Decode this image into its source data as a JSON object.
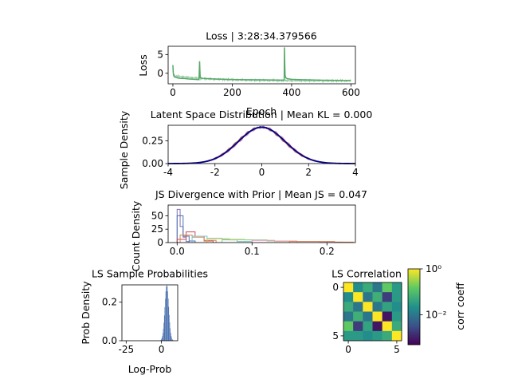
{
  "chart_data": [
    {
      "id": "loss",
      "type": "line",
      "title": "Loss | 3:28:34.379566",
      "xlabel": "Epoch",
      "ylabel": "Loss",
      "xlim": [
        -16,
        615
      ],
      "ylim": [
        -2.8,
        7.2
      ],
      "xticks": [
        0,
        200,
        400,
        600
      ],
      "yticks": [
        0,
        5
      ],
      "series": [
        {
          "color": "#55a868",
          "x": [
            0,
            1,
            2,
            4,
            6,
            10,
            15,
            20,
            30,
            40,
            50,
            60,
            70,
            80,
            88,
            90,
            91,
            92,
            94,
            96,
            100,
            120,
            150,
            180,
            200,
            250,
            300,
            340,
            360,
            370,
            375,
            376,
            377,
            378,
            380,
            385,
            390,
            400,
            450,
            500,
            550,
            600
          ],
          "y": [
            2.2,
            0.5,
            -0.4,
            -0.8,
            -1.0,
            -1.1,
            -1.2,
            -1.3,
            -1.35,
            -1.4,
            -1.5,
            -1.55,
            -1.6,
            -1.65,
            -1.7,
            3.2,
            1.0,
            -1.0,
            -1.2,
            -1.3,
            -1.35,
            -1.45,
            -1.55,
            -1.6,
            -1.65,
            -1.7,
            -1.75,
            -1.8,
            -1.82,
            -1.85,
            -1.85,
            6.9,
            2.5,
            -0.5,
            -1.2,
            -1.4,
            -1.5,
            -1.6,
            -1.75,
            -1.85,
            -1.9,
            -1.95
          ]
        }
      ]
    },
    {
      "id": "latent",
      "type": "line",
      "title": "Latent Space Distribution | Mean KL = 0.000",
      "ylabel": "Sample Density",
      "xlim": [
        -4,
        4
      ],
      "ylim": [
        0,
        0.42
      ],
      "xticks": [
        -4,
        -2,
        0,
        2,
        4
      ],
      "yticks": [
        0.0,
        0.25
      ],
      "ytick_labels": [
        "0.00",
        "0.25"
      ],
      "normal_mean": 0,
      "normal_std": 1,
      "series": [
        {
          "color": "#dd8452",
          "shift": 0.05,
          "jitter": 0.01
        },
        {
          "color": "#c44e52",
          "shift": -0.06,
          "jitter": 0.008
        },
        {
          "color": "#8172b3",
          "shift": 0.02,
          "jitter": 0.012
        },
        {
          "color": "#937860",
          "shift": -0.03,
          "jitter": 0.009
        },
        {
          "color": "#da8bc3",
          "shift": 0.04,
          "jitter": 0.01
        },
        {
          "color": "#4c72b0",
          "shift": 0.0,
          "jitter": 0.006
        },
        {
          "color": "#00008b",
          "shift": 0.0,
          "jitter": 0.0,
          "width": 1.8
        }
      ]
    },
    {
      "id": "js",
      "type": "histogram",
      "title": "JS Divergence with Prior | Mean JS = 0.047",
      "ylabel": "Count Density",
      "xlim": [
        -0.012,
        0.238
      ],
      "ylim": [
        0,
        70
      ],
      "xticks": [
        0.0,
        0.1,
        0.2
      ],
      "xtick_labels": [
        "0.0",
        "0.1",
        "0.2"
      ],
      "yticks": [
        0,
        25,
        50
      ],
      "series": [
        {
          "color": "#8172b3",
          "edges": [
            0.0,
            0.004,
            0.008,
            0.012,
            0.016
          ],
          "counts": [
            62,
            30,
            10,
            2
          ]
        },
        {
          "color": "#4c72b0",
          "edges": [
            0.0,
            0.008,
            0.016,
            0.024
          ],
          "counts": [
            50,
            12,
            3
          ]
        },
        {
          "color": "#c44e52",
          "edges": [
            0.0,
            0.012,
            0.024,
            0.036,
            0.048
          ],
          "counts": [
            6,
            20,
            12,
            3
          ]
        },
        {
          "color": "#dd8452",
          "edges": [
            0.004,
            0.02,
            0.036,
            0.052
          ],
          "counts": [
            14,
            10,
            4
          ]
        },
        {
          "color": "#76c7d0",
          "edges": [
            0.02,
            0.04,
            0.06,
            0.08,
            0.1
          ],
          "counts": [
            12,
            8,
            5,
            2
          ]
        },
        {
          "color": "#d4c65a",
          "edges": [
            0.04,
            0.07,
            0.1,
            0.13,
            0.16
          ],
          "counts": [
            7,
            5,
            4,
            2
          ]
        },
        {
          "color": "#8fd18a",
          "edges": [
            0.06,
            0.09,
            0.12,
            0.15
          ],
          "counts": [
            6,
            5,
            3
          ]
        },
        {
          "color": "#e79fcf",
          "edges": [
            0.1,
            0.13,
            0.16,
            0.19,
            0.22
          ],
          "counts": [
            4,
            3,
            2,
            1
          ]
        },
        {
          "color": "#dd8452",
          "edges": [
            0.15,
            0.18,
            0.21,
            0.235
          ],
          "counts": [
            2,
            2,
            1
          ]
        }
      ]
    },
    {
      "id": "probs",
      "type": "histogram",
      "title": "LS Sample Probabilities",
      "xlabel": "Log-Prob",
      "ylabel": "Prob Density",
      "xlim": [
        -28,
        11.5
      ],
      "ylim": [
        0,
        0.29
      ],
      "xticks": [
        -25,
        0
      ],
      "yticks": [
        0.0,
        0.2
      ],
      "ytick_labels": [
        "0.0",
        "0.2"
      ],
      "series": [
        {
          "color": "#4c72b0",
          "mean": 3.8,
          "std": 1.45,
          "bin_start": -2.0,
          "bin_end": 9.6,
          "bin_width": 0.35
        }
      ]
    },
    {
      "id": "corr",
      "type": "heatmap",
      "title": "LS Correlation",
      "colorbar_label": "corr coeff",
      "colorbar_ticks": [
        "10⁰",
        "10⁻²"
      ],
      "colorbar_scale": "log",
      "xticks": [
        0,
        5
      ],
      "yticks": [
        0,
        5
      ],
      "matrix": [
        [
          1,
          0.02,
          0.05,
          0.01,
          0.15,
          0.03
        ],
        [
          0.02,
          1,
          0.01,
          0.06,
          0.002,
          0.03
        ],
        [
          0.05,
          0.01,
          1,
          0.01,
          0.04,
          0.02
        ],
        [
          0.01,
          0.06,
          0.01,
          1,
          0.0008,
          0.03
        ],
        [
          0.15,
          0.002,
          0.04,
          0.0008,
          1,
          0.05
        ],
        [
          0.03,
          0.03,
          0.02,
          0.03,
          0.05,
          1
        ]
      ]
    }
  ]
}
